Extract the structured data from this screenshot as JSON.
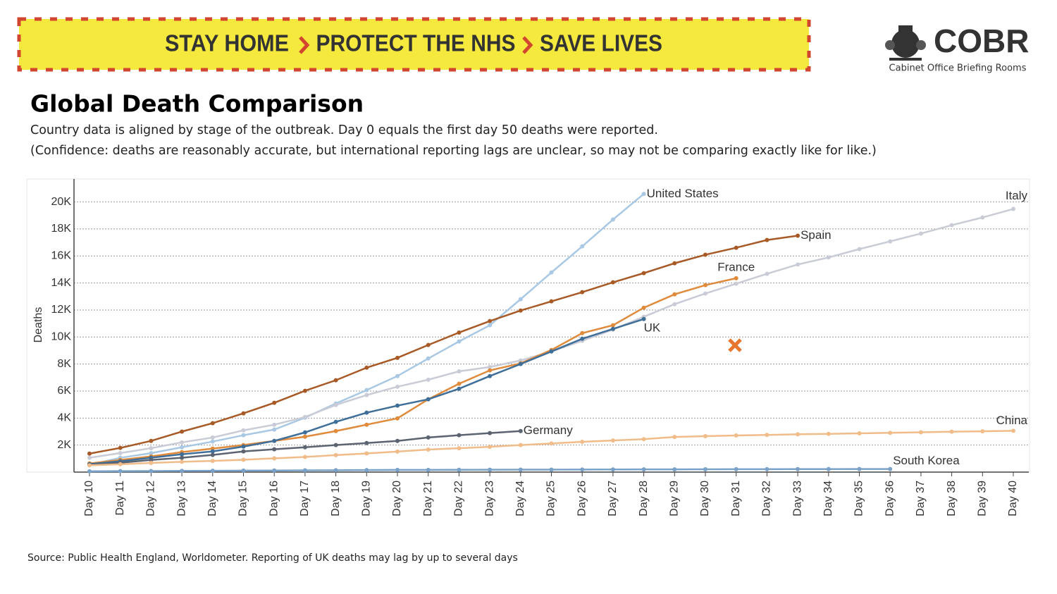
{
  "banner": [
    "STAY HOME",
    "PROTECT THE NHS",
    "SAVE LIVES"
  ],
  "logo": {
    "name": "COBR",
    "caption": "Cabinet Office Briefing Rooms"
  },
  "chart_data": {
    "type": "line",
    "title": "Global Death Comparison",
    "subtitle": [
      "Country data is aligned by stage of the outbreak. Day 0 equals the first day 50 deaths were reported.",
      "(Confidence: deaths are reasonably accurate, but international reporting lags are unclear, so may not be comparing exactly like for like.)"
    ],
    "source": "Source: Public Health England, Worldometer. Reporting of UK deaths may lag by up to several days",
    "y_label": "Deaths",
    "categories": [
      "Day 10",
      "Day 11",
      "Day 12",
      "Day 13",
      "Day 14",
      "Day 15",
      "Day 16",
      "Day 17",
      "Day 18",
      "Day 19",
      "Day 20",
      "Day 21",
      "Day 22",
      "Day 23",
      "Day 24",
      "Day 25",
      "Day 26",
      "Day 27",
      "Day 28",
      "Day 29",
      "Day 30",
      "Day 31",
      "Day 32",
      "Day 33",
      "Day 34",
      "Day 35",
      "Day 36",
      "Day 37",
      "Day 38",
      "Day 39",
      "Day 40"
    ],
    "ylim": [
      0,
      21700
    ],
    "yticks": [
      {
        "value": 2000,
        "label": "2K"
      },
      {
        "value": 4000,
        "label": "4K"
      },
      {
        "value": 6000,
        "label": "6K"
      },
      {
        "value": 8000,
        "label": "8K"
      },
      {
        "value": 10000,
        "label": "10K"
      },
      {
        "value": 12000,
        "label": "12K"
      },
      {
        "value": 14000,
        "label": "14K"
      },
      {
        "value": 16000,
        "label": "16K"
      },
      {
        "value": 18000,
        "label": "18K"
      },
      {
        "value": 20000,
        "label": "20K"
      }
    ],
    "grid": true,
    "series": [
      {
        "name": "United States",
        "color": "#a9c8e3",
        "values": [
          540,
          1060,
          1400,
          1840,
          2260,
          2730,
          3150,
          4030,
          5080,
          6070,
          7110,
          8410,
          9670,
          10870,
          12800,
          14780,
          16710,
          18700,
          20590,
          null,
          null,
          null,
          null,
          null,
          null,
          null,
          null,
          null,
          null,
          null,
          null
        ]
      },
      {
        "name": "Spain",
        "color": "#a85a26",
        "values": [
          1370,
          1790,
          2310,
          3000,
          3620,
          4350,
          5130,
          6020,
          6800,
          7730,
          8460,
          9410,
          10330,
          11180,
          11960,
          12640,
          13320,
          14050,
          14730,
          15460,
          16090,
          16610,
          17180,
          17500,
          null,
          null,
          null,
          null,
          null,
          null,
          null
        ]
      },
      {
        "name": "Italy",
        "color": "#c9ccd6",
        "values": [
          1060,
          1410,
          1770,
          2200,
          2560,
          3090,
          3510,
          4080,
          4970,
          5700,
          6320,
          6840,
          7460,
          7780,
          8260,
          8930,
          9720,
          10550,
          11500,
          12430,
          13220,
          13950,
          14680,
          15370,
          15890,
          16510,
          17080,
          17660,
          18280,
          18850,
          19480
        ]
      },
      {
        "name": "France",
        "color": "#e08a3c",
        "values": [
          640,
          900,
          1160,
          1480,
          1740,
          2000,
          2310,
          2620,
          3040,
          3510,
          3980,
          5390,
          6540,
          7530,
          8050,
          9040,
          10290,
          10870,
          12170,
          13160,
          13840,
          14350,
          null,
          null,
          null,
          null,
          null,
          null,
          null,
          null,
          null
        ]
      },
      {
        "name": "UK",
        "color": "#3f6f99",
        "values": [
          590,
          800,
          1060,
          1320,
          1530,
          1890,
          2310,
          2940,
          3720,
          4400,
          4920,
          5390,
          6170,
          7110,
          8000,
          8930,
          9870,
          10600,
          11330,
          null,
          null,
          null,
          null,
          null,
          null,
          null,
          null,
          null,
          null,
          null,
          null
        ]
      },
      {
        "name": "Germany",
        "color": "#5b6470",
        "values": [
          540,
          690,
          900,
          1060,
          1270,
          1530,
          1690,
          1840,
          2000,
          2150,
          2310,
          2560,
          2730,
          2890,
          3040,
          null,
          null,
          null,
          null,
          null,
          null,
          null,
          null,
          null,
          null,
          null,
          null,
          null,
          null,
          null,
          null
        ]
      },
      {
        "name": "China",
        "color": "#f0bc8a",
        "values": [
          500,
          580,
          680,
          760,
          830,
          910,
          1020,
          1120,
          1260,
          1380,
          1520,
          1670,
          1770,
          1870,
          2000,
          2120,
          2240,
          2340,
          2440,
          2600,
          2660,
          2710,
          2750,
          2800,
          2830,
          2870,
          2910,
          2950,
          2990,
          3020,
          3060
        ]
      },
      {
        "name": "South Korea",
        "color": "#7aa2c8",
        "values": [
          60,
          70,
          80,
          90,
          100,
          110,
          120,
          130,
          140,
          150,
          160,
          165,
          170,
          175,
          180,
          185,
          190,
          195,
          200,
          205,
          210,
          215,
          218,
          221,
          224,
          227,
          230,
          null,
          null,
          null,
          null
        ]
      }
    ]
  }
}
